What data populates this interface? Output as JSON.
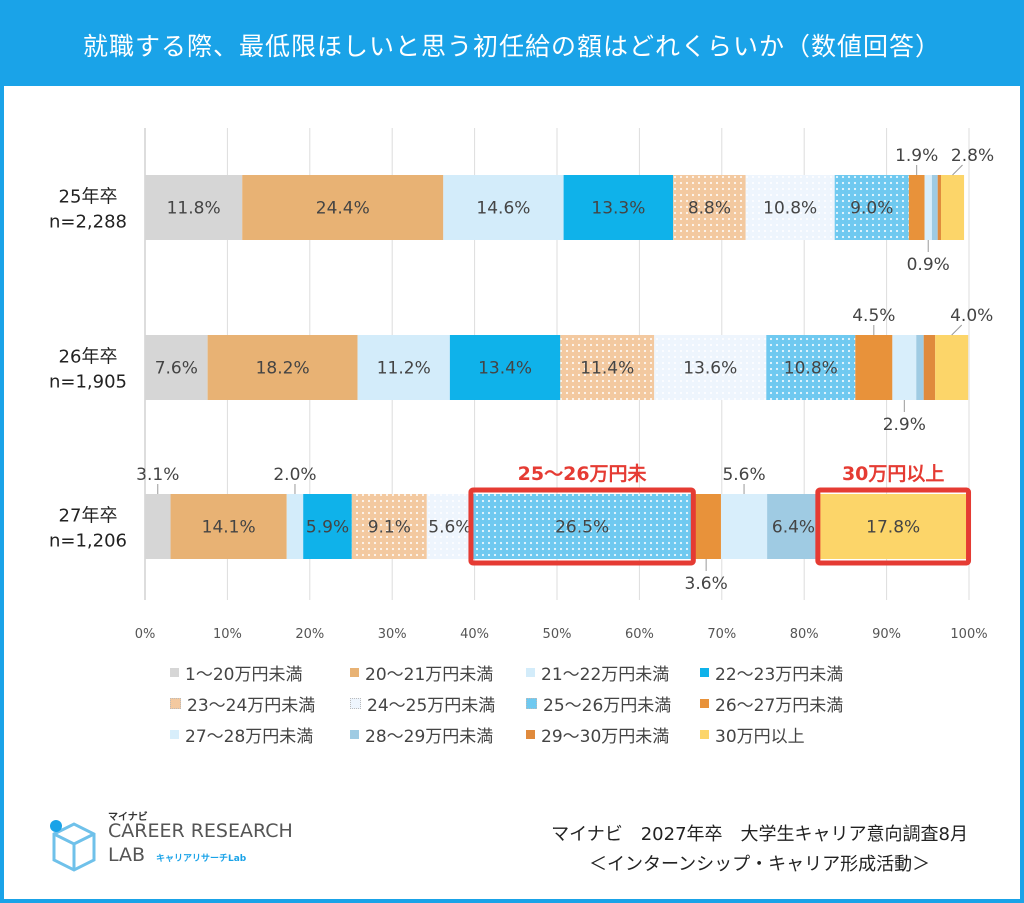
{
  "header": {
    "title": "就職する際、最低限ほしいと思う初任給の額はどれくらいか（数値回答）"
  },
  "chart_data": {
    "type": "bar",
    "orientation": "horizontal",
    "stacked": true,
    "normalized": true,
    "xlim": [
      0,
      100
    ],
    "x_ticks": [
      "0%",
      "10%",
      "20%",
      "30%",
      "40%",
      "50%",
      "60%",
      "70%",
      "80%",
      "90%",
      "100%"
    ],
    "categories": [
      {
        "label": "25年卒",
        "n": "n=2,288"
      },
      {
        "label": "26年卒",
        "n": "n=1,905"
      },
      {
        "label": "27年卒",
        "n": "n=1,206"
      }
    ],
    "series": [
      {
        "name": "1～20万円未満",
        "color": "#d6d6d6",
        "pattern": "none",
        "values": [
          11.8,
          7.6,
          3.1
        ]
      },
      {
        "name": "20～21万円未満",
        "color": "#e8b274",
        "pattern": "none",
        "values": [
          24.4,
          18.2,
          14.1
        ]
      },
      {
        "name": "21～22万円未満",
        "color": "#d3ecfa",
        "pattern": "none",
        "values": [
          14.6,
          11.2,
          2.0
        ]
      },
      {
        "name": "22～23万円未満",
        "color": "#0fb2ea",
        "pattern": "none",
        "values": [
          13.3,
          13.4,
          5.9
        ]
      },
      {
        "name": "23～24万円未満",
        "color": "#f3c9a0",
        "pattern": "dots",
        "values": [
          8.8,
          11.4,
          9.1
        ]
      },
      {
        "name": "24～25万円未満",
        "color": "#eef5fd",
        "pattern": "dots",
        "values": [
          10.8,
          13.6,
          5.6
        ]
      },
      {
        "name": "25～26万円未満",
        "color": "#6fc9f0",
        "pattern": "dots",
        "values": [
          9.0,
          10.8,
          26.5
        ]
      },
      {
        "name": "26～27万円未満",
        "color": "#e8923a",
        "pattern": "none",
        "values": [
          1.9,
          4.5,
          3.6
        ]
      },
      {
        "name": "27～28万円未満",
        "color": "#d8eefb",
        "pattern": "none",
        "values": [
          0.9,
          2.9,
          5.6
        ]
      },
      {
        "name": "28～29万円未満",
        "color": "#9fcbe3",
        "pattern": "none",
        "values": [
          0.7,
          0.9,
          6.4
        ]
      },
      {
        "name": "29～30万円未満",
        "color": "#e08a3c",
        "pattern": "none",
        "values": [
          0.4,
          1.4,
          0.0
        ]
      },
      {
        "name": "30万円以上",
        "color": "#fcd569",
        "pattern": "none",
        "values": [
          2.8,
          4.0,
          17.8
        ]
      }
    ],
    "data_labels": [
      [
        {
          "text": "11.8%",
          "series": 0,
          "pos": "inside"
        },
        {
          "text": "24.4%",
          "series": 1,
          "pos": "inside"
        },
        {
          "text": "14.6%",
          "series": 2,
          "pos": "inside"
        },
        {
          "text": "13.3%",
          "series": 3,
          "pos": "inside"
        },
        {
          "text": "8.8%",
          "series": 4,
          "pos": "inside"
        },
        {
          "text": "10.8%",
          "series": 5,
          "pos": "inside"
        },
        {
          "text": "9.0%",
          "series": 6,
          "pos": "inside"
        },
        {
          "text": "1.9%",
          "series": 7,
          "pos": "above"
        },
        {
          "text": "0.9%",
          "series": 8,
          "pos": "below"
        },
        {
          "text": "2.8%",
          "series": 11,
          "pos": "above-right"
        }
      ],
      [
        {
          "text": "7.6%",
          "series": 0,
          "pos": "inside"
        },
        {
          "text": "18.2%",
          "series": 1,
          "pos": "inside"
        },
        {
          "text": "11.2%",
          "series": 2,
          "pos": "inside"
        },
        {
          "text": "13.4%",
          "series": 3,
          "pos": "inside"
        },
        {
          "text": "11.4%",
          "series": 4,
          "pos": "inside"
        },
        {
          "text": "13.6%",
          "series": 5,
          "pos": "inside"
        },
        {
          "text": "10.8%",
          "series": 6,
          "pos": "inside"
        },
        {
          "text": "4.5%",
          "series": 7,
          "pos": "above"
        },
        {
          "text": "2.9%",
          "series": 8,
          "pos": "below"
        },
        {
          "text": "4.0%",
          "series": 11,
          "pos": "above-right"
        }
      ],
      [
        {
          "text": "3.1%",
          "series": 0,
          "pos": "above"
        },
        {
          "text": "14.1%",
          "series": 1,
          "pos": "inside"
        },
        {
          "text": "2.0%",
          "series": 2,
          "pos": "above"
        },
        {
          "text": "5.9%",
          "series": 3,
          "pos": "inside"
        },
        {
          "text": "9.1%",
          "series": 4,
          "pos": "inside"
        },
        {
          "text": "5.6%",
          "series": 5,
          "pos": "inside"
        },
        {
          "text": "26.5%",
          "series": 6,
          "pos": "inside"
        },
        {
          "text": "3.6%",
          "series": 7,
          "pos": "below"
        },
        {
          "text": "5.6%",
          "series": 8,
          "pos": "above"
        },
        {
          "text": "6.4%",
          "series": 9,
          "pos": "inside"
        },
        {
          "text": "17.8%",
          "series": 11,
          "pos": "inside"
        }
      ]
    ],
    "annotations": [
      {
        "text": "25～26万円未",
        "row": 2,
        "series_from": 6,
        "series_to": 6,
        "color": "#e53b33"
      },
      {
        "text": "30万円以上",
        "row": 2,
        "series_from": 11,
        "series_to": 11,
        "color": "#e53b33"
      }
    ],
    "grid": true
  },
  "logo": {
    "small": "マイナビ",
    "main": "CAREER RESEARCH",
    "lab": "LAB",
    "sub": "キャリアリサーチLab"
  },
  "source": {
    "line1": "マイナビ　2027年卒　大学生キャリア意向調査8月",
    "line2": "＜インターンシップ・キャリア形成活動＞"
  }
}
